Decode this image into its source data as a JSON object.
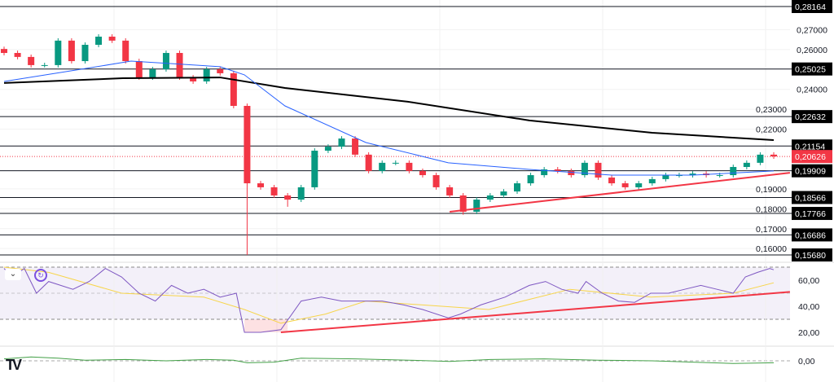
{
  "chart_data": {
    "type": "candlestick",
    "price_axis": {
      "min": 0.1568,
      "max": 0.28164,
      "ticks": [
        "0,27000",
        "0,26000",
        "0,24000",
        "0,23000",
        "0,22000",
        "0,19000",
        "0,18000",
        "0,17000",
        "0,16000"
      ],
      "tick_values": [
        0.27,
        0.26,
        0.24,
        0.23,
        0.22,
        0.19,
        0.18,
        0.17,
        0.16
      ]
    },
    "closes": [
      0.2583,
      0.2563,
      0.2522,
      0.2522,
      0.2645,
      0.2542,
      0.2624,
      0.2665,
      0.2645,
      0.2542,
      0.246,
      0.2501,
      0.2583,
      0.246,
      0.244,
      0.2501,
      0.2481,
      0.2317,
      0.1928,
      0.1908,
      0.1867,
      0.1846,
      0.1908,
      0.2092,
      0.2112,
      0.2153,
      0.2072,
      0.199,
      0.2031,
      0.2031,
      0.199,
      0.1969,
      0.1908,
      0.1867,
      0.1785,
      0.1846,
      0.1867,
      0.1887,
      0.1928,
      0.1969,
      0.1998,
      0.199,
      0.1969,
      0.2031,
      0.1957,
      0.1928,
      0.1908,
      0.1928,
      0.1949,
      0.1969,
      0.1969,
      0.1977,
      0.1969,
      0.1969,
      0.201,
      0.2031,
      0.2072,
      0.2063
    ],
    "low_overrides": {
      "18": 0.1568,
      "21": 0.181,
      "34": 0.177
    },
    "ma_black": [
      [
        0,
        0.2432
      ],
      [
        8.8,
        0.2456
      ],
      [
        16,
        0.246
      ],
      [
        20.8,
        0.2407
      ],
      [
        29.9,
        0.2338
      ],
      [
        38.9,
        0.2244
      ],
      [
        48,
        0.2182
      ],
      [
        57,
        0.2145
      ]
    ],
    "ma_blue": [
      [
        0,
        0.244
      ],
      [
        5.7,
        0.2501
      ],
      [
        9.4,
        0.2542
      ],
      [
        16,
        0.2514
      ],
      [
        17.8,
        0.2473
      ],
      [
        20.8,
        0.2317
      ],
      [
        26.8,
        0.2133
      ],
      [
        32.9,
        0.2031
      ],
      [
        38.9,
        0.1998
      ],
      [
        45,
        0.1969
      ],
      [
        51,
        0.1969
      ],
      [
        57,
        0.199
      ]
    ],
    "levels": [
      {
        "value": 0.28164,
        "label": "0,28164"
      },
      {
        "value": 0.25025,
        "label": "0,25025"
      },
      {
        "value": 0.22632,
        "label": "0,22632"
      },
      {
        "value": 0.21154,
        "label": "0,21154"
      },
      {
        "value": 0.19909,
        "label": "0,19909"
      },
      {
        "value": 0.18566,
        "label": "0,18566"
      },
      {
        "value": 0.17766,
        "label": "0,17766"
      },
      {
        "value": 0.16686,
        "label": "0,16686"
      },
      {
        "value": 0.1568,
        "label": "0,15680"
      }
    ],
    "current_price": {
      "value": 0.20626,
      "label": "0,20626"
    },
    "trendline": [
      [
        33,
        0.1785
      ],
      [
        58.2,
        0.1981
      ]
    ],
    "rsi": {
      "ticks": [
        "60,00",
        "40,00",
        "20,00"
      ],
      "tick_values": [
        60,
        40,
        20
      ],
      "band": [
        30,
        70
      ],
      "range": [
        20,
        70
      ],
      "values": [
        [
          0,
          69
        ],
        [
          0.6,
          62.5
        ],
        [
          1.5,
          69
        ],
        [
          2.4,
          50
        ],
        [
          3.3,
          59
        ],
        [
          5.1,
          53
        ],
        [
          6.3,
          59
        ],
        [
          7.5,
          69
        ],
        [
          8.7,
          62.5
        ],
        [
          10,
          50
        ],
        [
          11.2,
          44
        ],
        [
          12.4,
          56
        ],
        [
          13.6,
          50
        ],
        [
          14.8,
          53
        ],
        [
          16,
          47
        ],
        [
          17.2,
          50
        ],
        [
          17.8,
          20
        ],
        [
          19,
          20
        ],
        [
          20.5,
          22
        ],
        [
          22,
          44
        ],
        [
          23.5,
          47
        ],
        [
          25,
          44
        ],
        [
          26.5,
          44
        ],
        [
          28,
          44
        ],
        [
          29.6,
          41
        ],
        [
          31,
          37.5
        ],
        [
          32.9,
          31
        ],
        [
          33.8,
          34
        ],
        [
          35.3,
          41
        ],
        [
          37.1,
          47
        ],
        [
          38.9,
          56
        ],
        [
          40.1,
          59
        ],
        [
          41.3,
          53
        ],
        [
          42.5,
          50
        ],
        [
          43.1,
          59
        ],
        [
          44.3,
          50
        ],
        [
          45.5,
          44
        ],
        [
          46.7,
          43
        ],
        [
          47.9,
          50
        ],
        [
          49.2,
          50
        ],
        [
          50.4,
          53
        ],
        [
          51.6,
          56
        ],
        [
          52.8,
          53
        ],
        [
          54,
          50
        ],
        [
          54.9,
          62.5
        ],
        [
          55.8,
          66
        ],
        [
          56.7,
          69
        ],
        [
          57,
          68
        ]
      ],
      "ma": [
        [
          0,
          70
        ],
        [
          3.3,
          66
        ],
        [
          8.7,
          50
        ],
        [
          14.8,
          47
        ],
        [
          17.8,
          37.5
        ],
        [
          20.5,
          27
        ],
        [
          23.8,
          34
        ],
        [
          26.8,
          44
        ],
        [
          31,
          41
        ],
        [
          35.9,
          37.5
        ],
        [
          41.9,
          53
        ],
        [
          47.9,
          47
        ],
        [
          54,
          50
        ],
        [
          57,
          58
        ]
      ],
      "trendline": [
        [
          20.5,
          20
        ],
        [
          58.2,
          51
        ]
      ]
    },
    "oscillator": {
      "ticks": [
        "0,00"
      ],
      "values": [
        [
          0,
          0.3
        ],
        [
          2,
          0.6
        ],
        [
          4,
          0.4
        ],
        [
          6,
          0.1
        ],
        [
          9,
          0.2
        ],
        [
          12,
          0
        ],
        [
          15,
          0.2
        ],
        [
          17,
          0.1
        ],
        [
          18,
          -0.3
        ],
        [
          20,
          -0.2
        ],
        [
          22,
          0.4
        ],
        [
          26,
          0.3
        ],
        [
          30,
          0.1
        ],
        [
          33,
          -0.1
        ],
        [
          36,
          0.2
        ],
        [
          40,
          0.3
        ],
        [
          44,
          0.1
        ],
        [
          48,
          0
        ],
        [
          51,
          -0.2
        ],
        [
          54,
          -0.4
        ],
        [
          57,
          -0.3
        ]
      ]
    }
  },
  "ui": {
    "collapse_icon": "chevron-down-icon",
    "refresh_icon": "refresh-icon",
    "logo": "TV"
  }
}
